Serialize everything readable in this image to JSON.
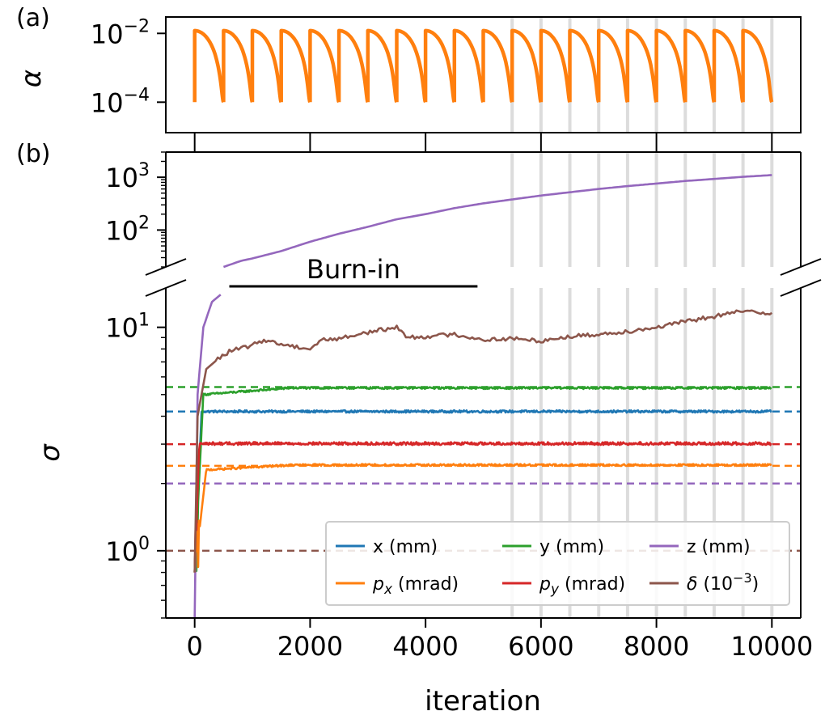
{
  "figure": {
    "panels": [
      {
        "label": "(a)",
        "ylabel": "α"
      },
      {
        "label": "(b)",
        "ylabel": "σ",
        "xlabel": "iteration"
      }
    ]
  },
  "chart_data": [
    {
      "type": "line",
      "panel": "(a)",
      "ylabel": "α",
      "yscale": "log",
      "xlim": [
        -500,
        10500
      ],
      "ylim": [
        1.3e-05,
        0.03
      ],
      "yticks": [
        {
          "value": 0.01,
          "mantissa": "10",
          "exponent": "−2"
        },
        {
          "value": 0.0001,
          "mantissa": "10",
          "exponent": "−4"
        }
      ],
      "series": [
        {
          "color": "#ff7f0e",
          "schedule": "cosine",
          "cycle_length": 500,
          "cycles": 20,
          "x_start": 0,
          "x_end": 10000,
          "alpha_max": 0.012,
          "alpha_min": 0.0001
        }
      ],
      "vlines": [
        5500,
        6000,
        6500,
        7000,
        7500,
        8000,
        8500,
        9000,
        9500,
        10000
      ],
      "vline_color": "#dcdcdc"
    },
    {
      "type": "line",
      "panel": "(b)",
      "ylabel": "σ",
      "xlabel": "iteration",
      "yscale": "log",
      "broken_y_axis": true,
      "xlim": [
        -500,
        10500
      ],
      "xticks": [
        0,
        2000,
        4000,
        6000,
        8000,
        10000
      ],
      "ylim_lower": [
        0.5,
        15
      ],
      "ylim_upper": [
        20,
        3000
      ],
      "yticks": [
        {
          "value": 1000,
          "mantissa": "10",
          "exponent": "3"
        },
        {
          "value": 100,
          "mantissa": "10",
          "exponent": "2"
        },
        {
          "value": 10,
          "mantissa": "10",
          "exponent": "1"
        },
        {
          "value": 1,
          "mantissa": "10",
          "exponent": "0"
        }
      ],
      "vlines": [
        5500,
        6000,
        6500,
        7000,
        7500,
        8000,
        8500,
        9000,
        9500,
        10000
      ],
      "vline_color": "#dcdcdc",
      "annotation": {
        "text": "Burn-in",
        "x_start": 600,
        "x_end": 4900,
        "y": 15.5
      },
      "legend": {
        "placement": "lower-right",
        "columns": 3
      },
      "series": [
        {
          "name": "x (mm)",
          "name_html": "x (mm)",
          "color": "#1f77b4",
          "target": 4.2,
          "final": 4.2,
          "rise": 120,
          "noise": 0.012
        },
        {
          "name": "y (mm)",
          "name_html": "y (mm)",
          "color": "#2ca02c",
          "target": 5.4,
          "start_plateau": 5.0,
          "final": 5.35,
          "rise": 150,
          "noise": 0.01
        },
        {
          "name": "z (mm)",
          "name_html": "z (mm)",
          "color": "#9467bd",
          "target": 2.0,
          "points": [
            [
              0,
              0.5
            ],
            [
              50,
              5
            ],
            [
              150,
              10
            ],
            [
              300,
              13
            ],
            [
              450,
              14
            ],
            [
              500,
              20
            ],
            [
              800,
              26
            ],
            [
              1000,
              29
            ],
            [
              1500,
              40
            ],
            [
              2000,
              60
            ],
            [
              2500,
              85
            ],
            [
              3000,
              115
            ],
            [
              3500,
              160
            ],
            [
              4000,
              200
            ],
            [
              4500,
              260
            ],
            [
              5000,
              320
            ],
            [
              5500,
              380
            ],
            [
              6000,
              450
            ],
            [
              6500,
              520
            ],
            [
              7000,
              600
            ],
            [
              7500,
              680
            ],
            [
              8000,
              760
            ],
            [
              8500,
              850
            ],
            [
              9000,
              930
            ],
            [
              9500,
              1020
            ],
            [
              10000,
              1100
            ]
          ]
        },
        {
          "name": "p_x (mrad)",
          "name_html": "p<tspan font-style='italic' font-size='24'>x</tspan> (mrad)",
          "sym": "p",
          "sub": "x",
          "rest": " (mrad)",
          "color": "#ff7f0e",
          "target": 2.4,
          "final": 2.42,
          "start_plateau": 2.3,
          "rise": 200,
          "noise": 0.01
        },
        {
          "name": "p_y (mrad)",
          "sym": "p",
          "sub": "y",
          "rest": " (mrad)",
          "color": "#d62728",
          "target": 3.0,
          "final": 3.02,
          "rise": 80,
          "noise": 0.015
        },
        {
          "name": "δ (10^-3)",
          "sym": "δ",
          "rest_pre": " (10",
          "sup": "−3",
          "rest_post": ")",
          "color": "#8c564b",
          "target": 1.0,
          "points": [
            [
              0,
              0.8
            ],
            [
              50,
              4
            ],
            [
              200,
              6.5
            ],
            [
              400,
              7.2
            ],
            [
              600,
              7.8
            ],
            [
              1000,
              8.3
            ],
            [
              1200,
              8.8
            ],
            [
              1500,
              8.4
            ],
            [
              2000,
              8.0
            ],
            [
              2200,
              8.8
            ],
            [
              2500,
              8.9
            ],
            [
              3000,
              9.5
            ],
            [
              3500,
              10.0
            ],
            [
              3700,
              9.0
            ],
            [
              4000,
              9.1
            ],
            [
              4500,
              9.3
            ],
            [
              5000,
              8.8
            ],
            [
              5500,
              8.9
            ],
            [
              6000,
              8.7
            ],
            [
              6500,
              9.1
            ],
            [
              7000,
              9.3
            ],
            [
              7500,
              9.6
            ],
            [
              8000,
              10.0
            ],
            [
              8500,
              10.6
            ],
            [
              9000,
              11.2
            ],
            [
              9500,
              11.8
            ],
            [
              10000,
              11.6
            ]
          ]
        }
      ]
    }
  ]
}
